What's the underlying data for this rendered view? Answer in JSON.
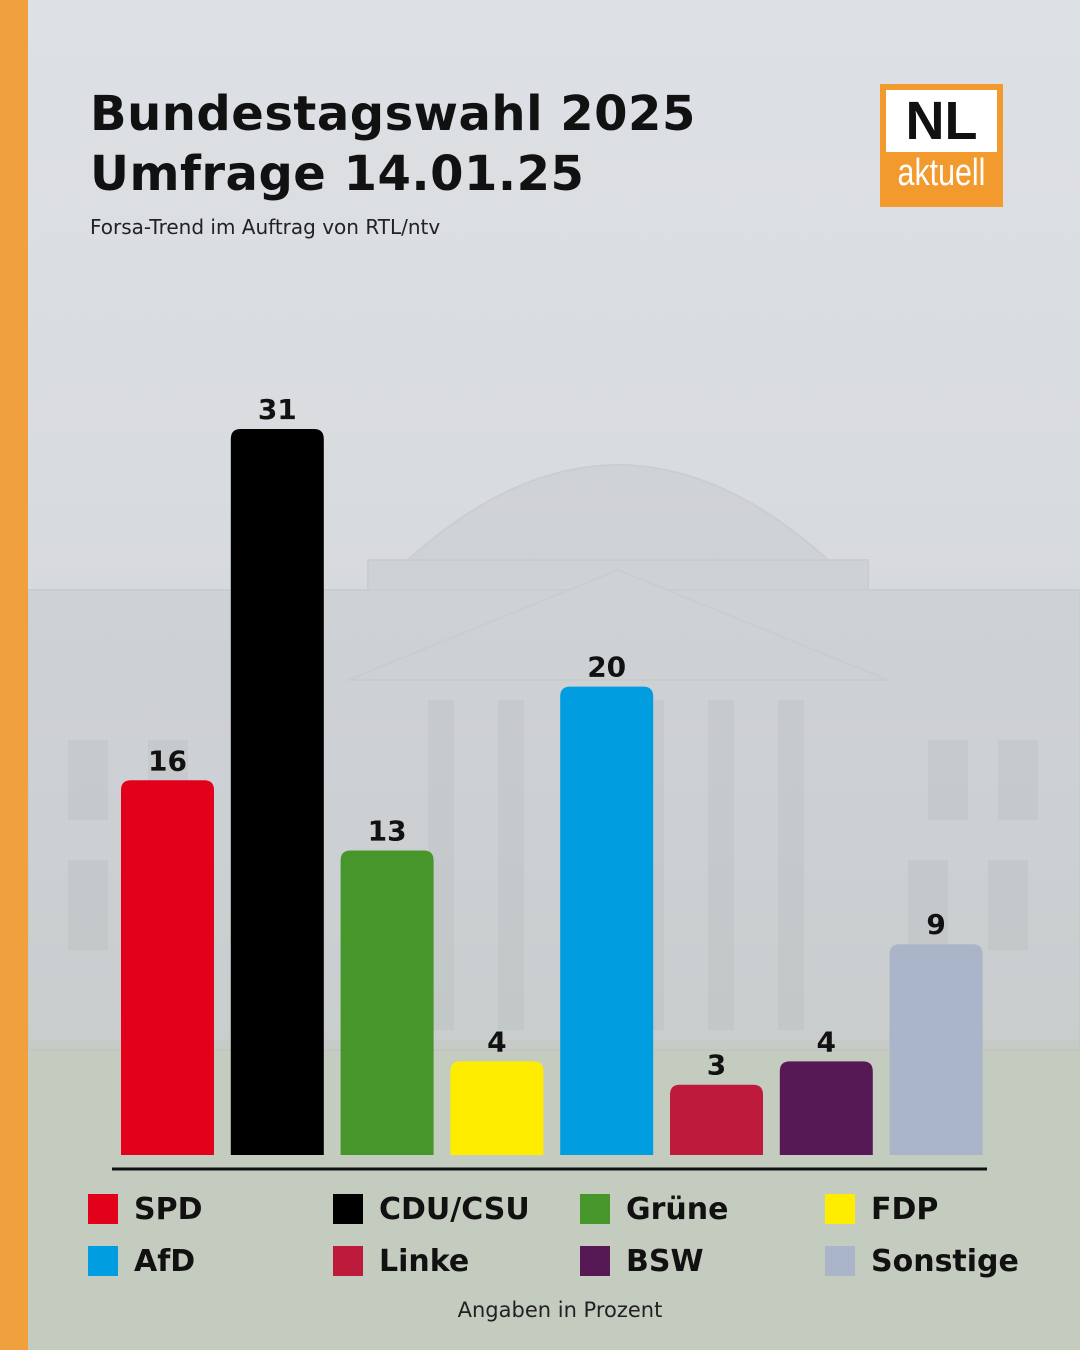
{
  "header": {
    "title_line1": "Bundestagswahl 2025",
    "title_line2": "Umfrage 14.01.25",
    "subtitle": "Forsa-Trend im Auftrag von RTL/ntv"
  },
  "logo": {
    "main": "NL",
    "sub": "aktuell",
    "color": "#f39a2e"
  },
  "accent_color": "#f0a03c",
  "chart_data": {
    "type": "bar",
    "title": "Bundestagswahl 2025 Umfrage 14.01.25",
    "subtitle": "Forsa-Trend im Auftrag von RTL/ntv",
    "categories": [
      "SPD",
      "CDU/CSU",
      "Grüne",
      "FDP",
      "AfD",
      "Linke",
      "BSW",
      "Sonstige"
    ],
    "values": [
      16,
      31,
      13,
      4,
      20,
      3,
      4,
      9
    ],
    "colors": [
      "#e2001a",
      "#000000",
      "#46962b",
      "#ffed00",
      "#009ee0",
      "#be1a3c",
      "#561956",
      "#aab5c9"
    ],
    "unit_note": "Angaben in Prozent",
    "ylim": [
      0,
      31
    ],
    "grid": false,
    "legend_position": "bottom"
  },
  "footnote": "Angaben in Prozent"
}
